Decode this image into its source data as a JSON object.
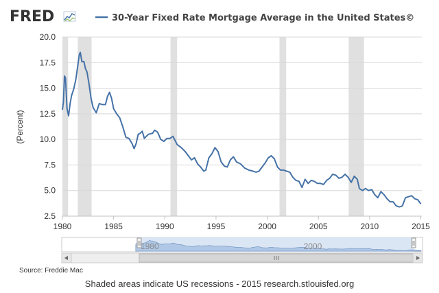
{
  "header": {
    "logo_text": "FRED",
    "title": "30-Year Fixed Rate Mortgage Average in the United States©"
  },
  "colors": {
    "series": "#4572a7",
    "recession": "#e0e0e0",
    "grid": "#d8d8d8",
    "navigator_fill": "#a8c2e3",
    "navigator_window": "#dbe6f4",
    "background": "#ffffff"
  },
  "navigator": {
    "labels": [
      "1980",
      "2000"
    ],
    "scroll_left_icon": "arrow-left-icon",
    "scroll_right_icon": "arrow-right-icon",
    "grip_icon": "grip-icon"
  },
  "footer": {
    "source": "Source: Freddie Mac",
    "note": "Shaded areas indicate US recessions - 2015 research.stlouisfed.org"
  },
  "chart_data": {
    "type": "line",
    "title": "30-Year Fixed Rate Mortgage Average in the United States©",
    "ylabel": "(Percent)",
    "xlabel": "",
    "xlim": [
      1980,
      2015.1
    ],
    "ylim": [
      2.5,
      20.0
    ],
    "x_ticks": [
      1980,
      1985,
      1990,
      1995,
      2000,
      2005,
      2010,
      2015
    ],
    "x_tick_labels": [
      "1980",
      "1985",
      "1990",
      "1995",
      "2000",
      "2005",
      "2010",
      "2015"
    ],
    "y_ticks": [
      2.5,
      5.0,
      7.5,
      10.0,
      12.5,
      15.0,
      17.5,
      20.0
    ],
    "y_tick_labels": [
      "2.5",
      "5.0",
      "7.5",
      "10.0",
      "12.5",
      "15.0",
      "17.5",
      "20.0"
    ],
    "grid": true,
    "legend": "top",
    "recessions": [
      [
        1980.0,
        1980.55
      ],
      [
        1981.5,
        1982.85
      ],
      [
        1990.55,
        1991.2
      ],
      [
        2001.2,
        2001.85
      ],
      [
        2007.95,
        2009.45
      ]
    ],
    "series": [
      {
        "name": "30-Year Fixed Rate Mortgage Average in the United States©",
        "x": [
          1980.0,
          1980.1,
          1980.2,
          1980.3,
          1980.45,
          1980.6,
          1980.75,
          1980.9,
          1981.1,
          1981.3,
          1981.5,
          1981.65,
          1981.75,
          1981.9,
          1982.1,
          1982.25,
          1982.4,
          1982.6,
          1982.8,
          1983.0,
          1983.3,
          1983.6,
          1983.9,
          1984.2,
          1984.4,
          1984.6,
          1984.8,
          1985.0,
          1985.3,
          1985.6,
          1985.9,
          1986.2,
          1986.5,
          1986.8,
          1987.0,
          1987.2,
          1987.4,
          1987.6,
          1987.8,
          1988.0,
          1988.4,
          1988.8,
          1989.0,
          1989.3,
          1989.6,
          1989.9,
          1990.2,
          1990.5,
          1990.8,
          1991.2,
          1991.6,
          1992.0,
          1992.3,
          1992.6,
          1992.9,
          1993.2,
          1993.5,
          1993.8,
          1994.0,
          1994.3,
          1994.6,
          1994.9,
          1995.2,
          1995.5,
          1995.8,
          1996.1,
          1996.4,
          1996.7,
          1997.0,
          1997.4,
          1997.8,
          1998.2,
          1998.6,
          1998.9,
          1999.2,
          1999.5,
          1999.8,
          2000.1,
          2000.4,
          2000.7,
          2001.0,
          2001.3,
          2001.6,
          2001.9,
          2002.2,
          2002.5,
          2002.8,
          2003.1,
          2003.4,
          2003.7,
          2004.0,
          2004.3,
          2004.6,
          2004.9,
          2005.2,
          2005.5,
          2005.8,
          2006.1,
          2006.4,
          2006.7,
          2007.0,
          2007.3,
          2007.6,
          2007.9,
          2008.2,
          2008.5,
          2008.8,
          2009.0,
          2009.3,
          2009.6,
          2009.9,
          2010.2,
          2010.5,
          2010.8,
          2011.1,
          2011.4,
          2011.7,
          2012.0,
          2012.3,
          2012.6,
          2012.9,
          2013.2,
          2013.5,
          2013.8,
          2014.1,
          2014.4,
          2014.7,
          2015.0
        ],
        "y": [
          12.9,
          13.7,
          16.2,
          16.0,
          13.0,
          12.3,
          13.5,
          14.3,
          14.9,
          15.8,
          17.2,
          18.3,
          18.5,
          17.6,
          17.6,
          16.9,
          16.6,
          15.4,
          14.0,
          13.1,
          12.6,
          13.5,
          13.4,
          13.4,
          14.2,
          14.6,
          14.0,
          13.0,
          12.5,
          12.1,
          11.2,
          10.2,
          10.1,
          9.6,
          9.1,
          9.6,
          10.5,
          10.6,
          10.8,
          10.1,
          10.5,
          10.6,
          10.9,
          10.7,
          10.0,
          9.8,
          10.1,
          10.1,
          10.3,
          9.5,
          9.2,
          8.8,
          8.4,
          8.0,
          8.2,
          7.6,
          7.3,
          6.9,
          7.0,
          8.2,
          8.6,
          9.2,
          8.8,
          7.8,
          7.4,
          7.3,
          8.0,
          8.3,
          7.8,
          7.6,
          7.2,
          7.0,
          6.9,
          6.8,
          6.9,
          7.3,
          7.7,
          8.2,
          8.4,
          8.1,
          7.3,
          7.0,
          7.0,
          6.9,
          6.8,
          6.3,
          6.0,
          5.9,
          5.3,
          6.1,
          5.7,
          6.0,
          5.9,
          5.7,
          5.7,
          5.6,
          6.0,
          6.2,
          6.6,
          6.5,
          6.2,
          6.3,
          6.6,
          6.3,
          5.8,
          6.4,
          6.1,
          5.2,
          5.0,
          5.2,
          5.0,
          5.1,
          4.6,
          4.3,
          4.9,
          4.6,
          4.2,
          3.9,
          3.9,
          3.5,
          3.4,
          3.5,
          4.3,
          4.4,
          4.5,
          4.2,
          4.1,
          3.7
        ]
      }
    ]
  }
}
